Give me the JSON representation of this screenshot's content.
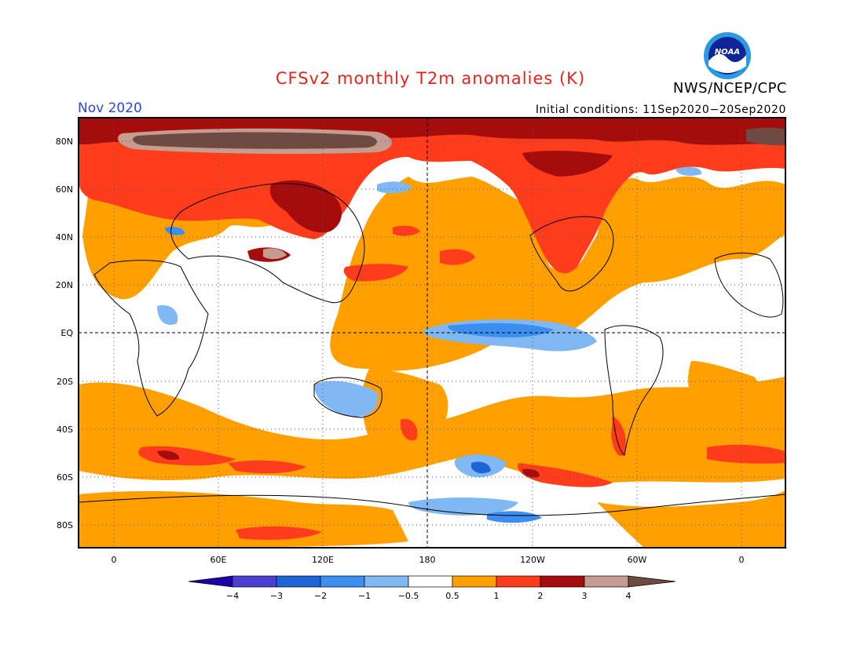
{
  "header": {
    "title": "CFSv2 monthly T2m anomalies (K)",
    "agency": "NWS/NCEP/CPC",
    "logo_text": "NOAA",
    "period": "Nov 2020",
    "initial_conditions": "Initial conditions: 11Sep2020−20Sep2020"
  },
  "map": {
    "projection": "equirectangular",
    "lat_labels": [
      "80N",
      "60N",
      "40N",
      "20N",
      "EQ",
      "20S",
      "40S",
      "60S",
      "80S"
    ],
    "lon_labels": [
      "0",
      "60E",
      "120E",
      "180",
      "120W",
      "60W",
      "0"
    ]
  },
  "colorbar": {
    "labels": [
      "−4",
      "−3",
      "−2",
      "−1",
      "−0.5",
      "0.5",
      "1",
      "2",
      "3",
      "4"
    ],
    "colors": [
      "#1c00a8",
      "#4a3fd0",
      "#1f64d6",
      "#3c8ef0",
      "#7fb8f2",
      "#ffffff",
      "#ffa000",
      "#ff3c1c",
      "#a50d0d",
      "#c49c90",
      "#6e4a42"
    ]
  }
}
